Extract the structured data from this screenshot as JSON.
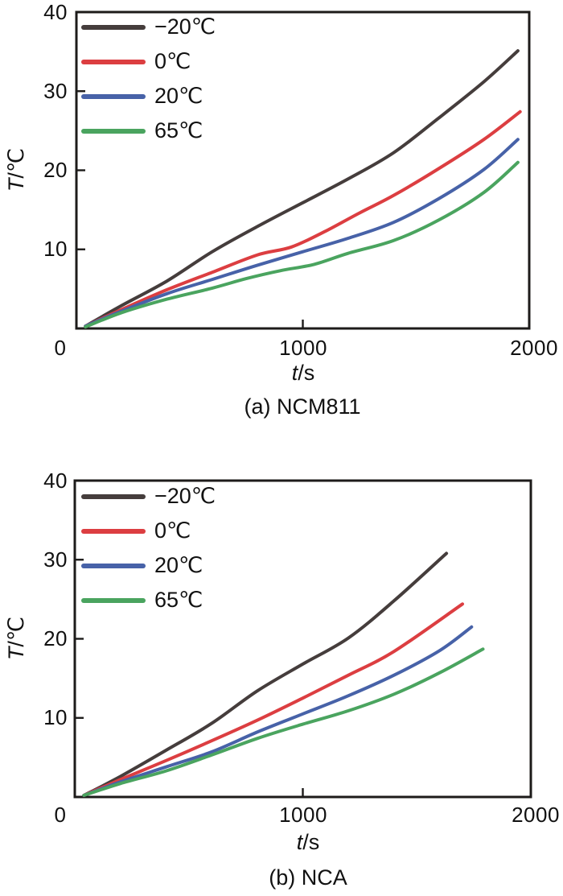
{
  "page": {
    "background": "#ffffff"
  },
  "axis": {
    "frame_color": "#1d1b1a",
    "tick_color": "#1d1b1a",
    "text_color": "#111111"
  },
  "chart_data": [
    {
      "id": "a",
      "type": "line",
      "caption": "(a) NCM811",
      "xlabel_italic": "t",
      "xlabel_rest": "/s",
      "ylabel_italic": "T",
      "ylabel_rest": "/℃",
      "xlim": [
        0,
        2000
      ],
      "ylim": [
        0,
        40
      ],
      "x_ticks": [
        0,
        1000,
        2000
      ],
      "y_ticks": [
        10,
        20,
        30,
        40
      ],
      "grid": false,
      "legend_position": "top-left",
      "series": [
        {
          "name": "−20℃",
          "color": "#453d3c",
          "points": [
            [
              40,
              0.3
            ],
            [
              200,
              2.9
            ],
            [
              400,
              6.0
            ],
            [
              600,
              9.7
            ],
            [
              800,
              12.9
            ],
            [
              1000,
              15.9
            ],
            [
              1200,
              18.9
            ],
            [
              1400,
              22.2
            ],
            [
              1600,
              26.6
            ],
            [
              1800,
              31.2
            ],
            [
              1950,
              35.1
            ]
          ]
        },
        {
          "name": "0℃",
          "color": "#dc3e41",
          "points": [
            [
              40,
              0.3
            ],
            [
              200,
              2.4
            ],
            [
              400,
              4.9
            ],
            [
              600,
              7.1
            ],
            [
              800,
              9.3
            ],
            [
              950,
              10.3
            ],
            [
              1100,
              12.3
            ],
            [
              1250,
              14.6
            ],
            [
              1400,
              16.8
            ],
            [
              1600,
              20.2
            ],
            [
              1800,
              23.9
            ],
            [
              1960,
              27.4
            ]
          ]
        },
        {
          "name": "20℃",
          "color": "#4762a8",
          "points": [
            [
              40,
              0.3
            ],
            [
              200,
              2.2
            ],
            [
              400,
              4.4
            ],
            [
              600,
              6.2
            ],
            [
              800,
              8.0
            ],
            [
              1000,
              9.7
            ],
            [
              1200,
              11.4
            ],
            [
              1400,
              13.4
            ],
            [
              1600,
              16.4
            ],
            [
              1800,
              20.1
            ],
            [
              1950,
              23.9
            ]
          ]
        },
        {
          "name": "65℃",
          "color": "#4aa45f",
          "points": [
            [
              40,
              0.2
            ],
            [
              200,
              2.0
            ],
            [
              400,
              3.7
            ],
            [
              600,
              5.1
            ],
            [
              750,
              6.3
            ],
            [
              900,
              7.3
            ],
            [
              1050,
              8.1
            ],
            [
              1200,
              9.5
            ],
            [
              1400,
              11.1
            ],
            [
              1600,
              13.7
            ],
            [
              1800,
              17.2
            ],
            [
              1950,
              21.0
            ]
          ]
        }
      ]
    },
    {
      "id": "b",
      "type": "line",
      "caption": "(b) NCA",
      "xlabel_italic": "t",
      "xlabel_rest": "/s",
      "ylabel_italic": "T",
      "ylabel_rest": "/℃",
      "xlim": [
        0,
        2000
      ],
      "ylim": [
        0,
        40
      ],
      "x_ticks": [
        0,
        1000,
        2000
      ],
      "y_ticks": [
        10,
        20,
        30,
        40
      ],
      "grid": false,
      "legend_position": "top-left",
      "series": [
        {
          "name": "−20℃",
          "color": "#453d3c",
          "points": [
            [
              40,
              0.2
            ],
            [
              200,
              2.6
            ],
            [
              400,
              5.9
            ],
            [
              600,
              9.3
            ],
            [
              800,
              13.4
            ],
            [
              1000,
              16.8
            ],
            [
              1200,
              20.1
            ],
            [
              1400,
              24.8
            ],
            [
              1630,
              30.8
            ]
          ]
        },
        {
          "name": "0℃",
          "color": "#dc3e41",
          "points": [
            [
              40,
              0.2
            ],
            [
              200,
              2.2
            ],
            [
              400,
              4.6
            ],
            [
              600,
              7.1
            ],
            [
              800,
              9.7
            ],
            [
              1000,
              12.5
            ],
            [
              1200,
              15.4
            ],
            [
              1400,
              18.4
            ],
            [
              1700,
              24.4
            ]
          ]
        },
        {
          "name": "20℃",
          "color": "#4762a8",
          "points": [
            [
              40,
              0.2
            ],
            [
              200,
              1.9
            ],
            [
              400,
              3.8
            ],
            [
              600,
              5.7
            ],
            [
              800,
              8.2
            ],
            [
              1000,
              10.5
            ],
            [
              1200,
              12.8
            ],
            [
              1400,
              15.4
            ],
            [
              1600,
              18.5
            ],
            [
              1740,
              21.5
            ]
          ]
        },
        {
          "name": "65℃",
          "color": "#4aa45f",
          "points": [
            [
              40,
              0.2
            ],
            [
              200,
              1.7
            ],
            [
              400,
              3.3
            ],
            [
              600,
              5.3
            ],
            [
              800,
              7.4
            ],
            [
              1000,
              9.2
            ],
            [
              1200,
              10.9
            ],
            [
              1400,
              13.0
            ],
            [
              1600,
              15.7
            ],
            [
              1790,
              18.7
            ]
          ]
        }
      ]
    }
  ]
}
